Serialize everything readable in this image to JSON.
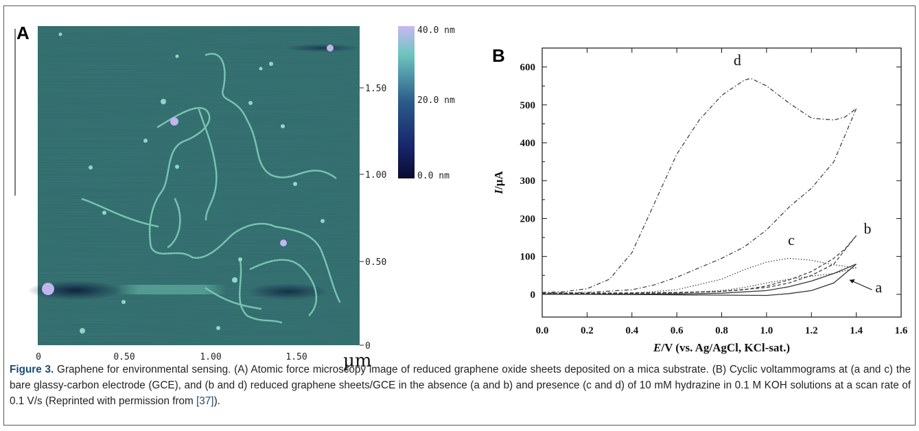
{
  "panel_a": {
    "label": "A",
    "x_ticks": [
      "0",
      "0.50",
      "1.00",
      "1.50"
    ],
    "x_unit": "µm",
    "y_ticks": [
      "0",
      "0.50",
      "1.00",
      "1.50"
    ],
    "colorbar_ticks": [
      "40.0 nm",
      "20.0 nm",
      "0.0 nm"
    ],
    "colors": {
      "low": "#0b0b3a",
      "mid": "#2a6a7a",
      "high": "#c4b2f0",
      "background": "#3f7d7c"
    }
  },
  "panel_b": {
    "label": "B",
    "curve_labels": [
      "d",
      "b",
      "c",
      "a"
    ]
  },
  "chart_data": {
    "type": "line",
    "xlabel_italic": "E",
    "xlabel": "/V (vs. Ag/AgCl, KCl-sat.)",
    "ylabel_italic": "I",
    "ylabel": "/µA",
    "xlim": [
      0.0,
      1.6
    ],
    "ylim": [
      -60,
      650
    ],
    "x_ticks": [
      "0.0",
      "0.2",
      "0.4",
      "0.6",
      "0.8",
      "1.0",
      "1.2",
      "1.4",
      "1.6"
    ],
    "y_ticks": [
      "0",
      "100",
      "200",
      "300",
      "400",
      "500",
      "600"
    ],
    "series": [
      {
        "name": "d",
        "style": "dash-dot",
        "forward": [
          [
            0,
            5
          ],
          [
            0.1,
            7
          ],
          [
            0.2,
            15
          ],
          [
            0.3,
            40
          ],
          [
            0.4,
            110
          ],
          [
            0.5,
            240
          ],
          [
            0.6,
            370
          ],
          [
            0.7,
            460
          ],
          [
            0.8,
            525
          ],
          [
            0.9,
            565
          ],
          [
            0.93,
            570
          ],
          [
            1.0,
            550
          ],
          [
            1.1,
            505
          ],
          [
            1.2,
            465
          ],
          [
            1.3,
            460
          ],
          [
            1.35,
            468
          ],
          [
            1.4,
            490
          ]
        ],
        "reverse": [
          [
            1.4,
            490
          ],
          [
            1.3,
            350
          ],
          [
            1.2,
            280
          ],
          [
            1.1,
            230
          ],
          [
            1.0,
            170
          ],
          [
            0.9,
            125
          ],
          [
            0.8,
            95
          ],
          [
            0.7,
            70
          ],
          [
            0.6,
            45
          ],
          [
            0.5,
            25
          ],
          [
            0.4,
            12
          ],
          [
            0.2,
            5
          ],
          [
            0,
            3
          ]
        ]
      },
      {
        "name": "b",
        "style": "dash",
        "forward": [
          [
            0,
            3
          ],
          [
            0.4,
            4
          ],
          [
            0.6,
            5
          ],
          [
            0.8,
            8
          ],
          [
            0.9,
            12
          ],
          [
            1.0,
            22
          ],
          [
            1.1,
            38
          ],
          [
            1.2,
            60
          ],
          [
            1.3,
            95
          ],
          [
            1.35,
            120
          ],
          [
            1.4,
            155
          ]
        ],
        "reverse": [
          [
            1.4,
            155
          ],
          [
            1.3,
            80
          ],
          [
            1.2,
            50
          ],
          [
            1.1,
            30
          ],
          [
            1.0,
            18
          ],
          [
            0.8,
            8
          ],
          [
            0.6,
            4
          ],
          [
            0.3,
            2
          ],
          [
            0,
            1
          ]
        ]
      },
      {
        "name": "c",
        "style": "dot",
        "forward": [
          [
            0,
            1
          ],
          [
            0.4,
            3
          ],
          [
            0.6,
            12
          ],
          [
            0.8,
            40
          ],
          [
            0.9,
            65
          ],
          [
            1.0,
            85
          ],
          [
            1.1,
            95
          ],
          [
            1.2,
            90
          ],
          [
            1.3,
            78
          ],
          [
            1.4,
            70
          ]
        ],
        "reverse": [
          [
            1.4,
            70
          ],
          [
            1.3,
            55
          ],
          [
            1.2,
            48
          ],
          [
            1.1,
            40
          ],
          [
            1.0,
            30
          ],
          [
            0.9,
            18
          ],
          [
            0.8,
            10
          ],
          [
            0.6,
            3
          ],
          [
            0.3,
            1
          ],
          [
            0,
            0
          ]
        ]
      },
      {
        "name": "a",
        "style": "solid",
        "forward": [
          [
            0,
            0
          ],
          [
            0.4,
            0
          ],
          [
            0.6,
            1
          ],
          [
            0.8,
            3
          ],
          [
            1.0,
            10
          ],
          [
            1.1,
            20
          ],
          [
            1.2,
            35
          ],
          [
            1.3,
            55
          ],
          [
            1.4,
            80
          ]
        ],
        "reverse": [
          [
            1.4,
            80
          ],
          [
            1.3,
            30
          ],
          [
            1.2,
            10
          ],
          [
            1.1,
            2
          ],
          [
            1.0,
            -3
          ],
          [
            0.8,
            -2
          ],
          [
            0.5,
            -1
          ],
          [
            0.2,
            0
          ],
          [
            0,
            0
          ]
        ]
      }
    ]
  },
  "caption": {
    "figure_label": "Figure 3.",
    "text": " Graphene for environmental sensing. (A) Atomic force microscopy image of reduced graphene oxide sheets deposited on a mica substrate. (B) Cyclic voltammograms at (a and c) the bare glassy-carbon electrode (GCE), and (b and d) reduced graphene sheets/GCE in the absence (a and b) and presence (c and d) of 10 mM hydrazine in 0.1 M KOH solutions at a scan rate of 0.1 V/s (Reprinted with permission from ",
    "ref": "[37]",
    "end": ")."
  }
}
